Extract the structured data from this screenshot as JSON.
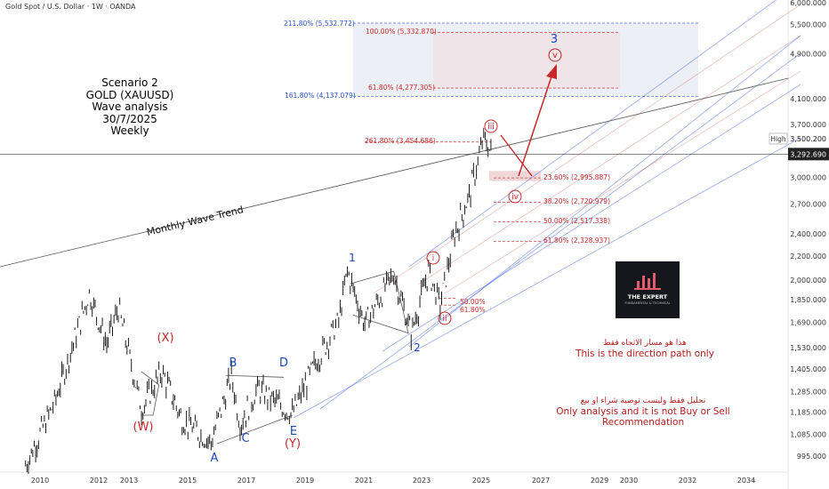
{
  "header": {
    "title": "Gold Spot / U.S. Dollar · 1W · OANDA"
  },
  "scenario": {
    "line1": "Scenario 2",
    "line2": "GOLD (XAUUSD) Wave analysis",
    "line3": "30/7/2025",
    "line4": "Weekly"
  },
  "notes": {
    "direction_ar": "هذا هو مسار الاتجاه فقط",
    "direction_en": "This is the direction path only",
    "disclaimer_ar": "تحليل فقط وليست توصية شراء او بيع",
    "disclaimer_en": "Only analysis and it is not Buy or Sell Recommendation"
  },
  "logo": {
    "text": "THE EXPERT",
    "subtext": "FUNDAMENTAL & TECHNICAL"
  },
  "colors": {
    "candles": "#1a1a1a",
    "wave_red": "#c62828",
    "wave_blue": "#1a47b8",
    "channel_blue": "#3f63e0",
    "projection_box": "#dfe4ee",
    "fib_text": "#c62828",
    "fib_ext_text": "#2a4fc8"
  },
  "chart_data": {
    "type": "line",
    "symbol": "XAUUSD",
    "timeframe": "1W",
    "x_ticks": [
      "2010",
      "2012",
      "2013",
      "2015",
      "2017",
      "2019",
      "2021",
      "2023",
      "2025",
      "2027",
      "2029",
      "2030",
      "2032",
      "2034"
    ],
    "y_ticks": [
      "6,000.000",
      "5,500.000",
      "4,900.000",
      "4,100.000",
      "3,700.000",
      "3,000.000",
      "2,700.000",
      "2,400.000",
      "2,200.000",
      "2,000.000",
      "1,850.000",
      "1,690.000",
      "1,530.000",
      "1,405.000",
      "1,285.000",
      "1,185.000",
      "1,085.000",
      "995.000"
    ],
    "ylim": [
      950,
      6000
    ],
    "y_scale": "log",
    "price_labels": {
      "high_label": "High",
      "high": "3,500.200",
      "current": "3,292.690"
    },
    "series": [
      {
        "values": [
          {
            "x": "2009.5",
            "y": 960
          },
          {
            "x": "2010.5",
            "y": 1230
          },
          {
            "x": "2011.7",
            "y": 1900
          },
          {
            "x": "2012.3",
            "y": 1550
          },
          {
            "x": "2012.7",
            "y": 1790
          },
          {
            "x": "2013.5",
            "y": 1200
          },
          {
            "x": "2014.2",
            "y": 1390
          },
          {
            "x": "2014.9",
            "y": 1150
          },
          {
            "x": "2015.9",
            "y": 1050
          },
          {
            "x": "2016.6",
            "y": 1370
          },
          {
            "x": "2016.9",
            "y": 1130
          },
          {
            "x": "2017.5",
            "y": 1300
          },
          {
            "x": "2018.7",
            "y": 1175
          },
          {
            "x": "2019.5",
            "y": 1440
          },
          {
            "x": "2020.3",
            "y": 1700
          },
          {
            "x": "2020.6",
            "y": 2070
          },
          {
            "x": "2021.2",
            "y": 1680
          },
          {
            "x": "2022.2",
            "y": 2050
          },
          {
            "x": "2022.8",
            "y": 1620
          },
          {
            "x": "2023.4",
            "y": 2070
          },
          {
            "x": "2023.8",
            "y": 1810
          },
          {
            "x": "2024.3",
            "y": 2400
          },
          {
            "x": "2024.8",
            "y": 2790
          },
          {
            "x": "2025.3",
            "y": 3500
          },
          {
            "x": "2025.6",
            "y": 3292
          }
        ]
      }
    ],
    "annotations": {
      "trendline_label": "Monthly Wave Trend",
      "wave_labels": [
        {
          "text": "(W)",
          "color": "red"
        },
        {
          "text": "(X)",
          "color": "red"
        },
        {
          "text": "(Y)",
          "color": "red"
        },
        {
          "text": "A",
          "color": "blue"
        },
        {
          "text": "B",
          "color": "blue"
        },
        {
          "text": "C",
          "color": "blue"
        },
        {
          "text": "D",
          "color": "blue"
        },
        {
          "text": "E",
          "color": "blue"
        },
        {
          "text": "1",
          "color": "blue"
        },
        {
          "text": "2",
          "color": "blue"
        },
        {
          "text": "3",
          "color": "blue"
        },
        {
          "text": "i",
          "color": "red-circle"
        },
        {
          "text": "ii",
          "color": "red-circle"
        },
        {
          "text": "iii",
          "color": "red-circle"
        },
        {
          "text": "iv",
          "color": "red-circle"
        },
        {
          "text": "v",
          "color": "red-circle"
        }
      ],
      "fib_levels": [
        {
          "text": "211.80% (5,532.772)",
          "price": 5532.772,
          "color": "blue"
        },
        {
          "text": "100.00% (5,332.870)",
          "price": 5332.87,
          "color": "red"
        },
        {
          "text": "161.80% (4,137.079)",
          "price": 4137.079,
          "color": "blue"
        },
        {
          "text": "61.80% (4,277.305)",
          "price": 4277.305,
          "color": "red"
        },
        {
          "text": "261.80% (3,454.686)",
          "price": 3454.686,
          "color": "red"
        },
        {
          "text": "23.60% (2,995.887)",
          "price": 2995.887,
          "color": "red"
        },
        {
          "text": "38.20% (2,720.979)",
          "price": 2720.979,
          "color": "red"
        },
        {
          "text": "50.00% (2,517.338)",
          "price": 2517.338,
          "color": "red"
        },
        {
          "text": "61.80% (2,328.937)",
          "price": 2328.937,
          "color": "red"
        },
        {
          "text": "50.00%",
          "price": 1860,
          "color": "red"
        },
        {
          "text": "61.80%",
          "price": 1810,
          "color": "red"
        }
      ]
    }
  }
}
